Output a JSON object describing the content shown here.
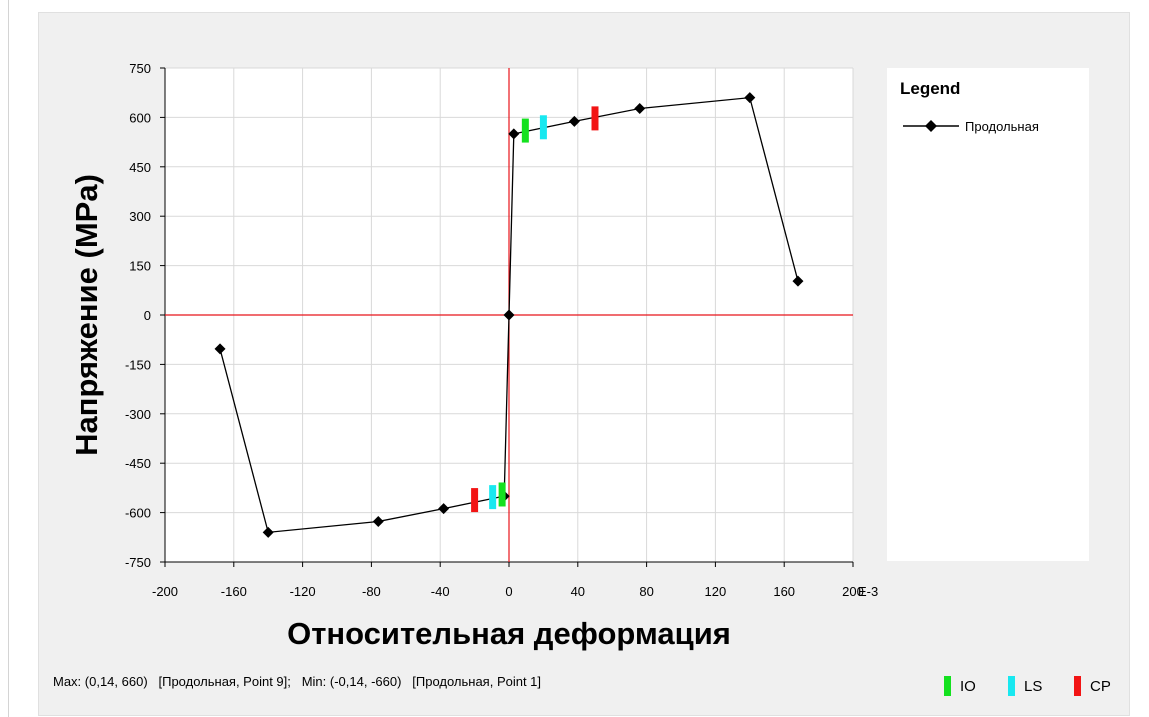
{
  "chart_data": {
    "type": "line",
    "xlabel": "Относительная деформация",
    "ylabel": "Напряжение (MPa)",
    "x_unit_suffix": "E-3",
    "xlim": [
      -200,
      200
    ],
    "ylim": [
      -750,
      750
    ],
    "x_ticks": [
      -200,
      -160,
      -120,
      -80,
      -40,
      0,
      40,
      80,
      120,
      160,
      200
    ],
    "y_ticks": [
      750,
      600,
      450,
      300,
      150,
      0,
      -150,
      -300,
      -450,
      -600,
      -750
    ],
    "x_tick_labels": [
      "-200",
      "-160",
      "-120",
      "-80",
      "-40",
      "0",
      "40",
      "80",
      "120",
      "160",
      "200"
    ],
    "y_tick_labels": [
      "750",
      "600",
      "450",
      "300",
      "150",
      "0",
      "-150",
      "-300",
      "-450",
      "-600",
      "-750"
    ],
    "grid": true,
    "axis_line_color": "#e8141b",
    "series": [
      {
        "name": "Продольная",
        "color": "#000000",
        "marker": "diamond",
        "x": [
          -168,
          -140,
          -76,
          -38,
          -2.8,
          0,
          2.8,
          38,
          76,
          140,
          168
        ],
        "y": [
          -103,
          -660,
          -627,
          -588,
          -550,
          0,
          550,
          588,
          627,
          660,
          103
        ]
      }
    ],
    "performance_markers": [
      {
        "level": "IO",
        "color": "#14e11f",
        "x": 9.5,
        "y": 560
      },
      {
        "level": "LS",
        "color": "#18e8f0",
        "x": 20,
        "y": 570
      },
      {
        "level": "CP",
        "color": "#f21414",
        "x": 50,
        "y": 597
      },
      {
        "level": "IO",
        "color": "#14e11f",
        "x": -4,
        "y": -545
      },
      {
        "level": "LS",
        "color": "#18e8f0",
        "x": -9.5,
        "y": -553
      },
      {
        "level": "CP",
        "color": "#f21414",
        "x": -20,
        "y": -562
      }
    ],
    "legend": {
      "title": "Legend",
      "placement": "right"
    }
  },
  "status": {
    "text": "Max: (0,14, 660)   [Продольная, Point 9];   Min: (-0,14, -660)   [Продольная, Point 1]"
  },
  "level_keys": [
    {
      "label": "IO",
      "color": "#14e11f"
    },
    {
      "label": "LS",
      "color": "#18e8f0"
    },
    {
      "label": "CP",
      "color": "#f21414"
    }
  ]
}
